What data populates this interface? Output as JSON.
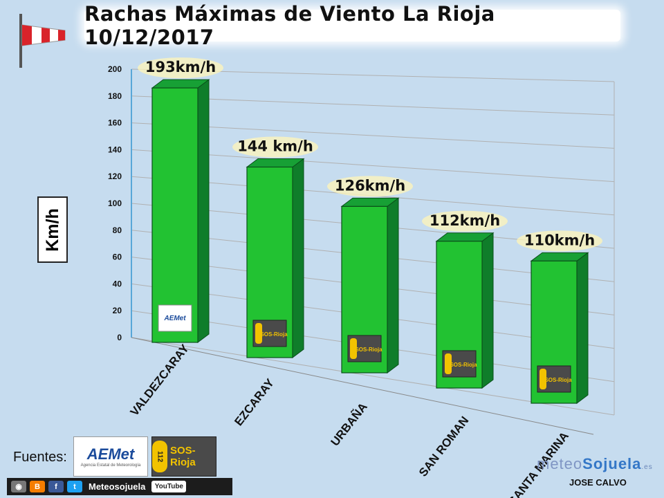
{
  "title": "Rachas Máximas de Viento La Rioja 10/12/2017",
  "y_unit_label": "Km/h",
  "sources_label": "Fuentes:",
  "source_logos": [
    "AEMet",
    "SOS-Rioja"
  ],
  "aemet_logo_subtitle": "Agencia Estatal de Meteorología",
  "sos_logo_number": "112",
  "social_bar": {
    "icons": [
      "camera-icon",
      "blogger-icon",
      "facebook-icon",
      "twitter-icon"
    ],
    "name": "Meteosojuela",
    "youtube": "YouTube"
  },
  "watermark": {
    "prefix": "meteo",
    "highlight": "Sojuela",
    "suffix": ".es"
  },
  "author": "JOSE CALVO",
  "colors": {
    "bar_front": "#22c232",
    "bar_side": "#0f7d2a",
    "bar_top": "#17a035",
    "background": "#c6dcef",
    "grid": "#b0b0b0"
  },
  "chart_data": {
    "type": "bar",
    "title": "Rachas Máximas de Viento La Rioja 10/12/2017",
    "xlabel": "",
    "ylabel": "Km/h",
    "categories": [
      "VALDEZCARAY",
      "EZCARAY",
      "URBAÑA",
      "SAN ROMAN",
      "SANTA MARINA"
    ],
    "values": [
      193,
      144,
      126,
      112,
      110
    ],
    "data_labels": [
      "193km/h",
      "144 km/h",
      "126km/h",
      "112km/h",
      "110km/h"
    ],
    "bar_logos": [
      "AEMet",
      "SOS-Rioja",
      "SOS-Rioja",
      "SOS-Rioja",
      "SOS-Rioja"
    ],
    "ylim": [
      0,
      200
    ],
    "yticks": [
      0,
      20,
      40,
      60,
      80,
      100,
      120,
      140,
      160,
      180,
      200
    ],
    "grid": true,
    "legend": "none",
    "style": "3d"
  }
}
